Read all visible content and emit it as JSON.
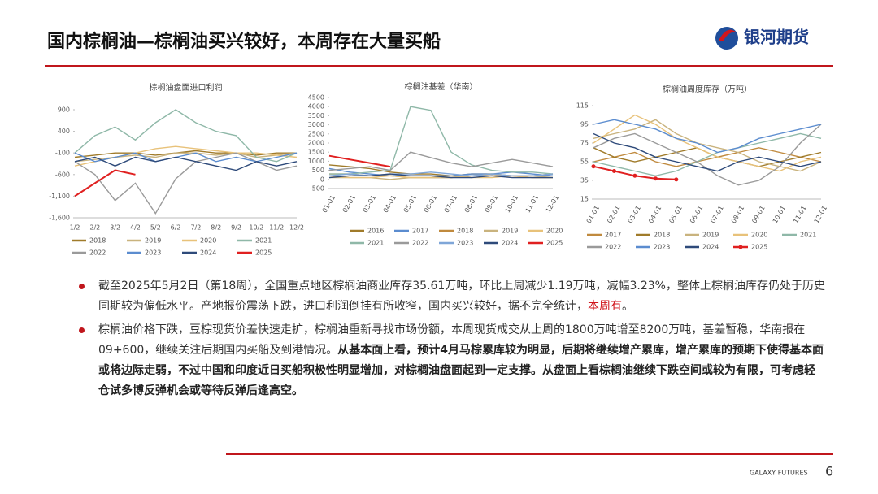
{
  "header": {
    "title": "国内棕榈油—棕榈油买兴较好，本周存在大量买船",
    "logo_text": "银河期货"
  },
  "chart_data": [
    {
      "type": "line",
      "title": "棕榈油盘面进口利润",
      "categories": [
        "1/2",
        "2/2",
        "3/2",
        "4/2",
        "5/2",
        "6/2",
        "7/2",
        "8/2",
        "9/2",
        "10/2",
        "11/2",
        "12/2"
      ],
      "ylim": [
        -1600,
        900
      ],
      "yticks": [
        {
          "value": -1600,
          "label": "-1,600"
        },
        {
          "value": -1100,
          "label": "-1,100"
        },
        -600,
        -100,
        400,
        900
      ],
      "series": [
        {
          "name": "2018",
          "color": "#a07b2a",
          "values": [
            -200,
            -150,
            -100,
            -100,
            -150,
            -100,
            -50,
            -100,
            -100,
            -150,
            -100,
            -100
          ]
        },
        {
          "name": "2019",
          "color": "#c9b37e",
          "values": [
            -300,
            -250,
            -200,
            -150,
            -200,
            -100,
            -100,
            -150,
            -100,
            -200,
            -150,
            -100
          ]
        },
        {
          "name": "2020",
          "color": "#e8c27a",
          "values": [
            -400,
            -300,
            -200,
            -100,
            0,
            50,
            0,
            -50,
            -100,
            -100,
            -150,
            -200
          ]
        },
        {
          "name": "2021",
          "color": "#8fb8a8",
          "values": [
            -100,
            300,
            500,
            200,
            600,
            900,
            600,
            400,
            300,
            -200,
            -300,
            -100
          ]
        },
        {
          "name": "2022",
          "color": "#9a9a9a",
          "values": [
            -300,
            -600,
            -1200,
            -800,
            -1500,
            -700,
            -300,
            -200,
            -100,
            -300,
            -500,
            -400
          ]
        },
        {
          "name": "2023",
          "color": "#5b8ccf",
          "values": [
            -100,
            -300,
            -200,
            -100,
            -300,
            -200,
            -100,
            -300,
            -200,
            -300,
            -200,
            -100
          ]
        },
        {
          "name": "2024",
          "color": "#2e4a7a",
          "values": [
            -300,
            -200,
            -400,
            -200,
            -300,
            -200,
            -300,
            -400,
            -500,
            -300,
            -400,
            -300
          ]
        },
        {
          "name": "2025",
          "color": "#e02020",
          "values": [
            -1100,
            -800,
            -500,
            -600,
            null,
            null,
            null,
            null,
            null,
            null,
            null,
            null
          ]
        }
      ]
    },
    {
      "type": "line",
      "title": "棕榈油基差（华南）",
      "categories": [
        "01-01",
        "02-01",
        "03-01",
        "04-01",
        "05-01",
        "06-01",
        "07-01",
        "08-01",
        "09-01",
        "10-01",
        "11-01",
        "12-01"
      ],
      "ylim": [
        -500,
        4500
      ],
      "yticks": [
        -500,
        0,
        500,
        1000,
        1500,
        2000,
        2500,
        3000,
        3500,
        4000,
        4500
      ],
      "series": [
        {
          "name": "2016",
          "color": "#a07b2a",
          "values": [
            800,
            700,
            600,
            400,
            300,
            300,
            200,
            300,
            300,
            200,
            200,
            300
          ]
        },
        {
          "name": "2017",
          "color": "#5b8ccf",
          "values": [
            600,
            400,
            300,
            200,
            200,
            200,
            200,
            300,
            300,
            400,
            300,
            200
          ]
        },
        {
          "name": "2018",
          "color": "#c08a3e",
          "values": [
            300,
            300,
            200,
            200,
            100,
            100,
            100,
            200,
            200,
            200,
            100,
            100
          ]
        },
        {
          "name": "2019",
          "color": "#c9b37e",
          "values": [
            100,
            100,
            100,
            0,
            100,
            100,
            100,
            200,
            300,
            200,
            200,
            100
          ]
        },
        {
          "name": "2020",
          "color": "#e8c27a",
          "values": [
            200,
            100,
            100,
            200,
            100,
            100,
            200,
            100,
            100,
            200,
            100,
            100
          ]
        },
        {
          "name": "2021",
          "color": "#8fb8a8",
          "values": [
            300,
            300,
            400,
            500,
            4000,
            3800,
            1500,
            800,
            500,
            400,
            400,
            300
          ]
        },
        {
          "name": "2022",
          "color": "#9a9a9a",
          "values": [
            500,
            600,
            700,
            500,
            1500,
            1200,
            900,
            700,
            900,
            1100,
            900,
            700
          ]
        },
        {
          "name": "2023",
          "color": "#7fa6d8",
          "values": [
            200,
            300,
            200,
            300,
            300,
            400,
            300,
            200,
            300,
            200,
            200,
            300
          ]
        },
        {
          "name": "2024",
          "color": "#2e4a7a",
          "values": [
            100,
            200,
            200,
            300,
            200,
            200,
            100,
            100,
            200,
            100,
            100,
            100
          ]
        },
        {
          "name": "2025",
          "color": "#e02020",
          "values": [
            1300,
            1100,
            900,
            700,
            null,
            null,
            null,
            null,
            null,
            null,
            null,
            null
          ]
        }
      ]
    },
    {
      "type": "line",
      "title": "棕榈油周度库存（万吨）",
      "categories": [
        "01-01",
        "02-01",
        "03-01",
        "04-01",
        "05-01",
        "06-01",
        "07-01",
        "08-01",
        "09-01",
        "10-01",
        "11-01",
        "12-01"
      ],
      "ylim": [
        15,
        115
      ],
      "yticks": [
        15,
        35,
        55,
        75,
        95,
        115
      ],
      "series": [
        {
          "name": "2017",
          "color": "#c08a3e",
          "values": [
            55,
            60,
            65,
            55,
            50,
            55,
            60,
            65,
            70,
            65,
            60,
            55
          ]
        },
        {
          "name": "2018",
          "color": "#a07b2a",
          "values": [
            70,
            60,
            55,
            60,
            65,
            70,
            60,
            55,
            50,
            55,
            60,
            65
          ]
        },
        {
          "name": "2019",
          "color": "#c9b37e",
          "values": [
            80,
            85,
            90,
            100,
            85,
            75,
            70,
            65,
            55,
            50,
            45,
            55
          ]
        },
        {
          "name": "2020",
          "color": "#e8c27a",
          "values": [
            75,
            90,
            105,
            95,
            80,
            70,
            60,
            55,
            50,
            45,
            55,
            60
          ]
        },
        {
          "name": "2021",
          "color": "#8fb8a8",
          "values": [
            55,
            50,
            45,
            40,
            45,
            55,
            65,
            70,
            75,
            80,
            85,
            80
          ]
        },
        {
          "name": "2022",
          "color": "#9a9a9a",
          "values": [
            70,
            80,
            85,
            75,
            65,
            55,
            40,
            30,
            35,
            50,
            75,
            95
          ]
        },
        {
          "name": "2023",
          "color": "#5b8ccf",
          "values": [
            95,
            100,
            95,
            90,
            80,
            75,
            65,
            70,
            80,
            85,
            90,
            95
          ]
        },
        {
          "name": "2024",
          "color": "#2e4a7a",
          "values": [
            85,
            75,
            70,
            60,
            55,
            50,
            45,
            55,
            60,
            55,
            50,
            55
          ]
        },
        {
          "name": "2025",
          "color": "#e02020",
          "markers": true,
          "values": [
            50,
            45,
            40,
            37,
            36,
            null,
            null,
            null,
            null,
            null,
            null,
            null
          ]
        }
      ]
    }
  ],
  "bullets": [
    {
      "segments": [
        {
          "text": "截至2025年5月2日（第18周），全国重点地区棕榈油商业库存35.61万吨，环比上周减少1.19万吨，减幅3.23%，整体上棕榈油库存仍处于历史同期较为偏低水平。产地报价震荡下跌，进口利润倒挂有所收窄，国内买兴较好，据不完全统计，",
          "style": "normal"
        },
        {
          "text": "本周有",
          "style": "red"
        },
        {
          "text": "。",
          "style": "normal"
        }
      ]
    },
    {
      "segments": [
        {
          "text": "棕榈油价格下跌，豆棕现货价差快速走扩，棕榈油重新寻找市场份额，本周现货成交从上周的1800万吨增至8200万吨，基差暂稳，华南报在09+600，继续关注后期国内买船及到港情况。",
          "style": "normal"
        },
        {
          "text": "从基本面上看，预计4月马棕累库较为明显，后期将继续增产累库，增产累库的预期下使得基本面或将边际走弱，不过中国和印度近日买船积极性明显增加，对棕榈油盘面起到一定支撑。从盘面上看棕榈油继续下跌空间或较为有限，可考虑轻仓试多博反弹机会或等待反弹后逢高空。",
          "style": "bold"
        }
      ]
    }
  ],
  "footer": {
    "brand": "GALAXY FUTURES",
    "page": "6"
  }
}
